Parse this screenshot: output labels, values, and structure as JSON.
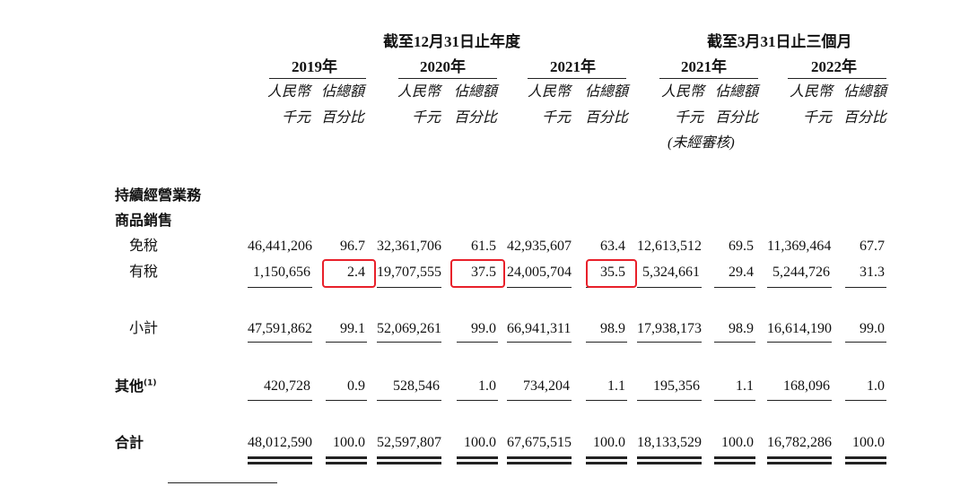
{
  "headers": {
    "group1": "截至12月31日止年度",
    "group2": "截至3月31日止三個月",
    "years": [
      "2019年",
      "2020年",
      "2021年",
      "2021年",
      "2022年"
    ],
    "unit_amount": [
      "人民幣",
      "千元"
    ],
    "unit_pct": [
      "佔總額",
      "百分比"
    ],
    "unaudited": "(未經審核)"
  },
  "sections": {
    "continuing": "持續經營業務",
    "goods_sales": "商品銷售"
  },
  "rows": [
    {
      "label": "免稅",
      "values": [
        "46,441,206",
        "96.7",
        "32,361,706",
        "61.5",
        "42,935,607",
        "63.4",
        "12,613,512",
        "69.5",
        "11,369,464",
        "67.7"
      ]
    },
    {
      "label": "有稅",
      "values": [
        "1,150,656",
        "2.4",
        "19,707,555",
        "37.5",
        "24,005,704",
        "35.5",
        "5,324,661",
        "29.4",
        "5,244,726",
        "31.3"
      ]
    },
    {
      "label": "小計",
      "values": [
        "47,591,862",
        "99.1",
        "52,069,261",
        "99.0",
        "66,941,311",
        "98.9",
        "17,938,173",
        "98.9",
        "16,614,190",
        "99.0"
      ]
    },
    {
      "label": "其他",
      "footnote": "(1)",
      "values": [
        "420,728",
        "0.9",
        "528,546",
        "1.0",
        "734,204",
        "1.1",
        "195,356",
        "1.1",
        "168,096",
        "1.0"
      ]
    },
    {
      "label": "合計",
      "values": [
        "48,012,590",
        "100.0",
        "52,597,807",
        "100.0",
        "67,675,515",
        "100.0",
        "18,133,529",
        "100.0",
        "16,782,286",
        "100.0"
      ]
    }
  ],
  "highlight_color": "#e8202a"
}
